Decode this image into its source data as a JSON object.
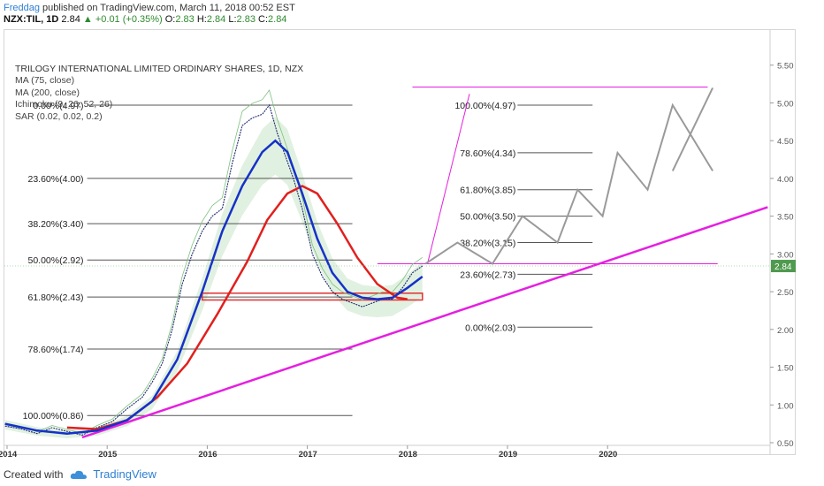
{
  "header": {
    "author": "Freddag",
    "published": "published on TradingView.com, March 11, 2018 00:52 EST"
  },
  "ohlc": {
    "symbol": "NZX:TIL, 1D",
    "last": "2.84",
    "change": "+0.01 (+0.35%)",
    "o_label": "O:",
    "o": "2.83",
    "h_label": "H:",
    "h": "2.84",
    "l_label": "L:",
    "l": "2.83",
    "c_label": "C:",
    "c": "2.84"
  },
  "legend": {
    "title": "TRILOGY INTERNATIONAL LIMITED ORDINARY SHARES, 1D, NZX",
    "ma75": "MA (75, close)",
    "ma200": "MA (200, close)",
    "ichimoku": "Ichimoku (9, 26, 52, 26)",
    "sar": "SAR (0.02, 0.02, 0.2)"
  },
  "footer": {
    "created_with": "Created with",
    "brand": "TradingView"
  },
  "chart_data": {
    "type": "line",
    "ylim": [
      0.5,
      6.0
    ],
    "y_ticks": [
      "0.50",
      "1.00",
      "1.50",
      "2.00",
      "2.50",
      "3.00",
      "3.50",
      "4.00",
      "4.50",
      "5.00",
      "5.50"
    ],
    "x_ticks": [
      "2014",
      "2015",
      "2016",
      "2017",
      "2018",
      "2019",
      "2020"
    ],
    "last_price_label": "2.84",
    "colors": {
      "price": "#1e2a6e",
      "ma75": "#1631c8",
      "ma200": "#e0201e",
      "fib": "#555555",
      "trend": "#e51fe0",
      "projection": "#9a9a9a",
      "cloud_fill": "#c8e6c9",
      "cloud_red": "#f3b4b4",
      "box": "#e03030"
    },
    "fib_left": [
      {
        "label": "0.00%(4.97)",
        "value": 4.97
      },
      {
        "label": "23.60%(4.00)",
        "value": 4.0
      },
      {
        "label": "38.20%(3.40)",
        "value": 3.4
      },
      {
        "label": "50.00%(2.92)",
        "value": 2.92
      },
      {
        "label": "61.80%(2.43)",
        "value": 2.43
      },
      {
        "label": "78.60%(1.74)",
        "value": 1.74
      },
      {
        "label": "100.00%(0.86)",
        "value": 0.86
      }
    ],
    "fib_right": [
      {
        "label": "100.00%(4.97)",
        "value": 4.97
      },
      {
        "label": "78.60%(4.34)",
        "value": 4.34
      },
      {
        "label": "61.80%(3.85)",
        "value": 3.85
      },
      {
        "label": "50.00%(3.50)",
        "value": 3.5
      },
      {
        "label": "38.20%(3.15)",
        "value": 3.15
      },
      {
        "label": "23.60%(2.73)",
        "value": 2.73
      },
      {
        "label": "0.00%(2.03)",
        "value": 2.03
      }
    ],
    "price_series": {
      "x": [
        2013.98,
        2014.15,
        2014.3,
        2014.45,
        2014.6,
        2014.75,
        2014.9,
        2015.05,
        2015.2,
        2015.35,
        2015.45,
        2015.55,
        2015.65,
        2015.75,
        2015.85,
        2015.95,
        2016.05,
        2016.15,
        2016.25,
        2016.35,
        2016.45,
        2016.55,
        2016.62,
        2016.7,
        2016.78,
        2016.86,
        2016.95,
        2017.05,
        2017.15,
        2017.25,
        2017.35,
        2017.45,
        2017.55,
        2017.65,
        2017.75,
        2017.85,
        2017.95,
        2018.05,
        2018.15
      ],
      "y": [
        0.72,
        0.68,
        0.62,
        0.7,
        0.65,
        0.6,
        0.7,
        0.78,
        0.95,
        1.1,
        1.3,
        1.55,
        2.0,
        2.6,
        3.0,
        3.3,
        3.5,
        3.6,
        4.2,
        4.7,
        4.8,
        4.85,
        4.97,
        4.6,
        4.3,
        4.0,
        3.6,
        3.0,
        2.7,
        2.5,
        2.4,
        2.35,
        2.3,
        2.35,
        2.4,
        2.4,
        2.55,
        2.75,
        2.84
      ]
    },
    "ma75_series": {
      "x": [
        2013.98,
        2014.3,
        2014.6,
        2014.9,
        2015.2,
        2015.45,
        2015.7,
        2015.95,
        2016.15,
        2016.35,
        2016.55,
        2016.68,
        2016.8,
        2016.95,
        2017.1,
        2017.25,
        2017.4,
        2017.55,
        2017.7,
        2017.85,
        2018.0,
        2018.15
      ],
      "y": [
        0.75,
        0.66,
        0.62,
        0.66,
        0.8,
        1.05,
        1.6,
        2.5,
        3.3,
        3.9,
        4.35,
        4.5,
        4.35,
        3.8,
        3.2,
        2.75,
        2.5,
        2.42,
        2.4,
        2.42,
        2.55,
        2.7
      ]
    },
    "ma200_series": {
      "x": [
        2014.6,
        2014.9,
        2015.2,
        2015.5,
        2015.8,
        2016.1,
        2016.4,
        2016.6,
        2016.8,
        2016.95,
        2017.1,
        2017.3,
        2017.5,
        2017.7,
        2017.9,
        2018.0
      ],
      "y": [
        0.7,
        0.68,
        0.8,
        1.1,
        1.55,
        2.2,
        2.9,
        3.45,
        3.8,
        3.9,
        3.8,
        3.4,
        2.95,
        2.6,
        2.42,
        2.4
      ]
    },
    "trendline": {
      "x": [
        2014.75,
        2021.6
      ],
      "y": [
        0.57,
        3.62
      ]
    },
    "horizontal_lines": [
      {
        "y": 5.21,
        "x": [
          2018.05,
          2021.0
        ]
      },
      {
        "y": 2.87,
        "x": [
          2017.7,
          2021.1
        ]
      }
    ],
    "steep_line": {
      "x": [
        2018.2,
        2018.62
      ],
      "y": [
        2.87,
        5.12
      ]
    },
    "projection": {
      "x": [
        2018.18,
        2018.5,
        2018.85,
        2019.15,
        2019.5,
        2019.7,
        2019.95,
        2020.1,
        2020.4,
        2020.65,
        2021.05
      ],
      "y": [
        2.87,
        3.15,
        2.87,
        3.5,
        3.15,
        3.85,
        3.5,
        4.34,
        3.85,
        4.97,
        4.1
      ]
    },
    "projection_tail": {
      "x": [
        2020.65,
        2021.05
      ],
      "y": [
        4.1,
        5.2
      ]
    },
    "box": {
      "x": [
        2015.95,
        2018.15
      ],
      "y": [
        2.39,
        2.48
      ]
    }
  }
}
